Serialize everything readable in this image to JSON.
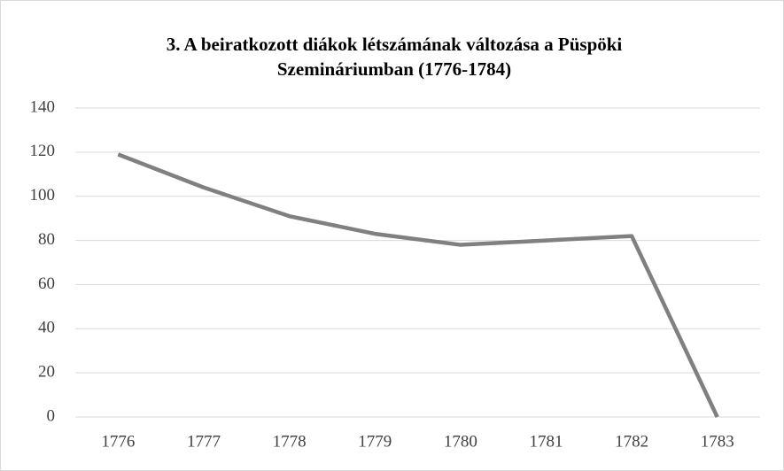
{
  "chart_data": {
    "type": "line",
    "title": [
      "3. A beiratkozott diákok létszámának változása a Püspöki",
      "Szemináriumban  (1776-1784)"
    ],
    "categories": [
      "1776",
      "1777",
      "1778",
      "1779",
      "1780",
      "1781",
      "1782",
      "1783"
    ],
    "values": [
      119,
      104,
      91,
      83,
      78,
      80,
      82,
      0
    ],
    "color": "#808080",
    "ylim": [
      0,
      140
    ],
    "yticks": [
      0,
      20,
      40,
      60,
      80,
      100,
      120,
      140
    ],
    "grid": true
  }
}
